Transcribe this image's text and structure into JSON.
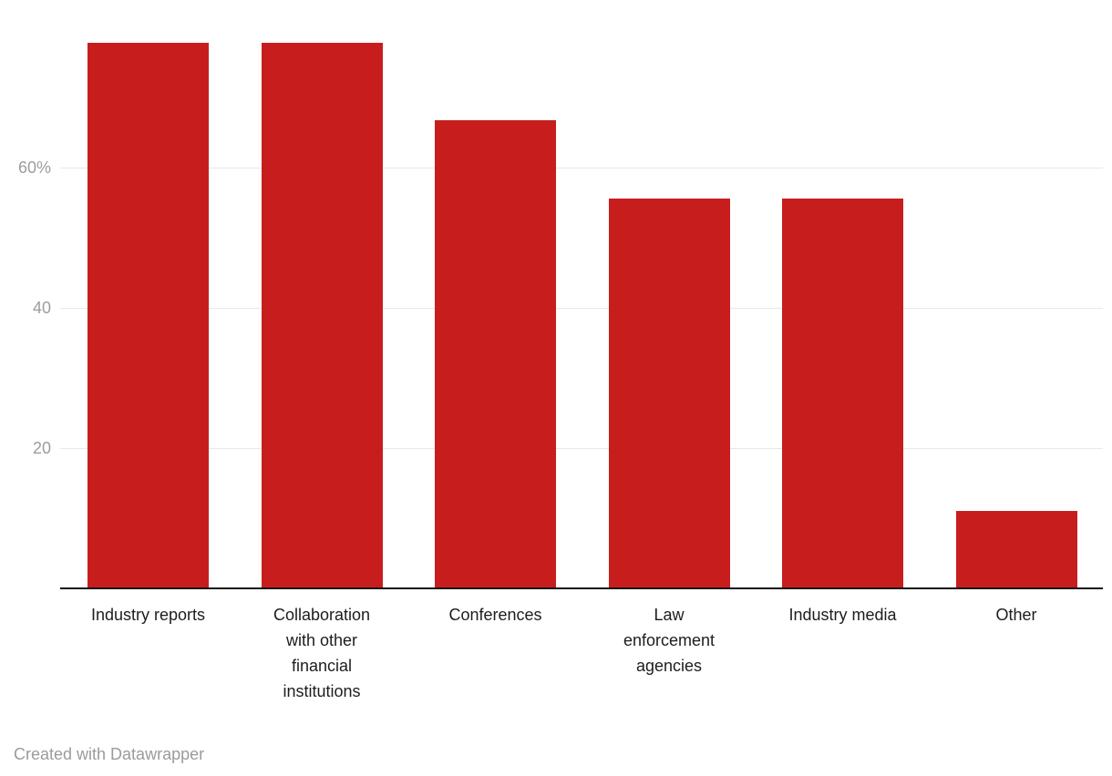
{
  "chart_data": {
    "type": "bar",
    "categories": [
      "Industry reports",
      "Collaboration with other financial institutions",
      "Conferences",
      "Law enforcement agencies",
      "Industry media",
      "Other"
    ],
    "category_label_lines": [
      [
        "Industry reports"
      ],
      [
        "Collaboration",
        "with other",
        "financial",
        "institutions"
      ],
      [
        "Conferences"
      ],
      [
        "Law",
        "enforcement",
        "agencies"
      ],
      [
        "Industry media"
      ],
      [
        "Other"
      ]
    ],
    "values": [
      77.8,
      77.8,
      66.7,
      55.6,
      55.6,
      11.1
    ],
    "title": "",
    "xlabel": "",
    "ylabel": "",
    "ylim": [
      0,
      80
    ],
    "y_ticks": [
      {
        "value": 20,
        "label": "20"
      },
      {
        "value": 40,
        "label": "40"
      },
      {
        "value": 60,
        "label": "60%"
      }
    ],
    "grid": true,
    "legend": "none"
  },
  "colors": {
    "bar": "#c71e1d",
    "gridline": "#e8e8e8",
    "axis_line": "#121212",
    "tick_label": "#9d9d9d",
    "category_label": "#1d1d1d",
    "footer_text": "#9b9b9b"
  },
  "footer": {
    "attribution": "Created with Datawrapper"
  }
}
